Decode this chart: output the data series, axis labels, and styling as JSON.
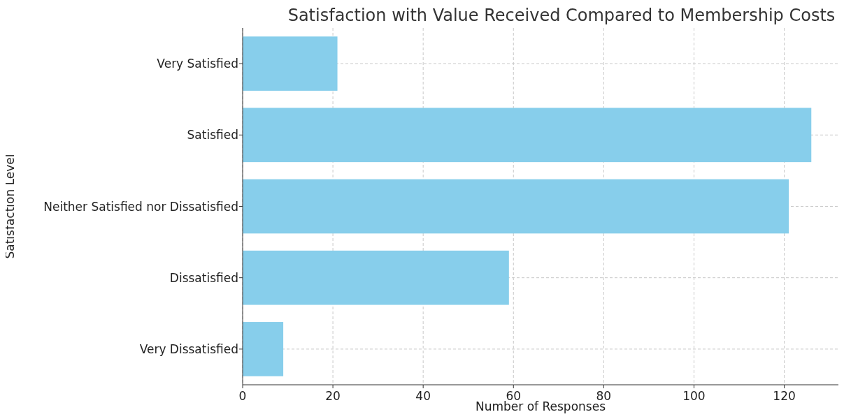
{
  "chart_data": {
    "type": "bar",
    "orientation": "horizontal",
    "title": "Satisfaction with Value Received Compared to Membership Costs",
    "xlabel": "Number of Responses",
    "ylabel": "Satisfaction Level",
    "categories": [
      "Very Satisfied",
      "Satisfied",
      "Neither Satisfied nor Dissatisfied",
      "Dissatisfied",
      "Very Dissatisfied"
    ],
    "values": [
      21,
      126,
      121,
      59,
      9
    ],
    "color": "#87ceeb",
    "xlim": [
      0,
      132
    ],
    "xticks": [
      0,
      20,
      40,
      60,
      80,
      100,
      120
    ],
    "grid": true,
    "line_style": "dashed"
  }
}
